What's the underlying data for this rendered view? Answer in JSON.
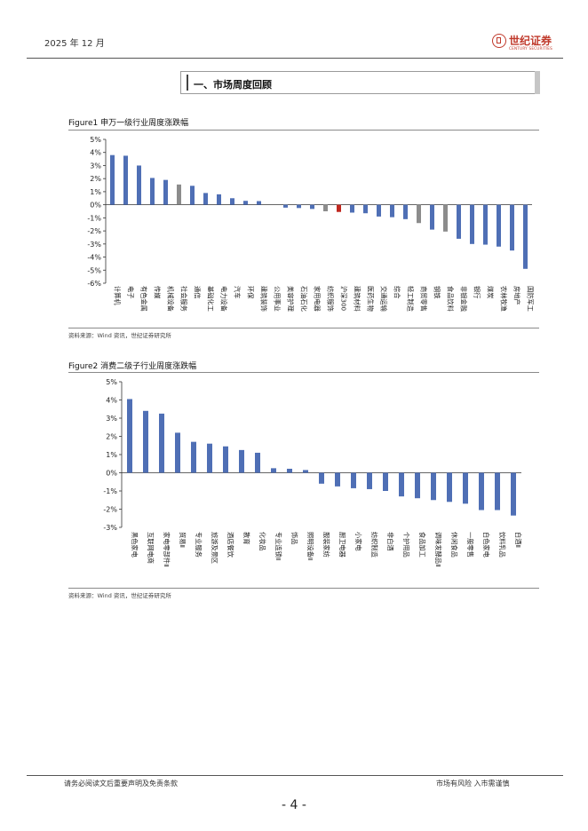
{
  "header": {
    "date": "2025 年 12 月",
    "logo_cn": "世纪证券",
    "logo_en": "CENTURY SECURITIES"
  },
  "section": {
    "title": "一、市场周度回顾"
  },
  "figure1": {
    "title": "Figure1 申万一级行业周度涨跌幅",
    "source": "资料来源：Wind 资讯，世纪证券研究所"
  },
  "figure2": {
    "title": "Figure2 消费二级子行业周度涨跌幅",
    "source": "资料来源：Wind 资讯，世纪证券研究所"
  },
  "footer": {
    "left": "请务必阅读文后重要声明及免责条款",
    "right": "市场有风险 入市需谨慎",
    "page": "- 4 -"
  },
  "colors": {
    "bar": "#4f6fb5",
    "highlight_gray": "#8c8c8c",
    "highlight_red": "#c0271f",
    "axis": "#333333"
  },
  "chart_data": [
    {
      "type": "bar",
      "title": "",
      "xlabel": "",
      "ylabel": "",
      "ylim": [
        -6,
        5
      ],
      "yticks": [
        5,
        4,
        3,
        2,
        1,
        0,
        -1,
        -2,
        -3,
        -4,
        -5,
        -6
      ],
      "tick_suffix": "%",
      "categories": [
        "计算机",
        "电子",
        "有色金属",
        "传媒",
        "机械设备",
        "社会服务",
        "通信",
        "基础化工",
        "电力设备",
        "汽车",
        "环保",
        "建筑装饰",
        "公用事业",
        "美容护理",
        "石油石化",
        "家用电器",
        "纺织服饰",
        "沪深300",
        "建筑材料",
        "医药生物",
        "交通运输",
        "综合",
        "轻工制造",
        "商贸零售",
        "钢铁",
        "食品饮料",
        "非银金融",
        "银行",
        "煤炭",
        "农林牧渔",
        "房地产",
        "国防军工"
      ],
      "values": [
        3.8,
        3.75,
        3.0,
        2.05,
        1.9,
        1.55,
        1.45,
        0.9,
        0.8,
        0.5,
        0.3,
        0.28,
        0.0,
        -0.22,
        -0.25,
        -0.32,
        -0.5,
        -0.55,
        -0.6,
        -0.65,
        -0.9,
        -0.95,
        -1.1,
        -1.4,
        -1.9,
        -2.05,
        -2.6,
        -3.0,
        -3.05,
        -3.2,
        -3.5,
        -4.9
      ],
      "highlight": {
        "社会服务": "gray",
        "纺织服饰": "gray",
        "商贸零售": "gray",
        "食品饮料": "gray",
        "沪深300": "red"
      },
      "grid": false,
      "legend": "none"
    },
    {
      "type": "bar",
      "title": "",
      "xlabel": "",
      "ylabel": "",
      "ylim": [
        -3,
        5
      ],
      "yticks": [
        5,
        4,
        3,
        2,
        1,
        0,
        -1,
        -2,
        -3
      ],
      "tick_suffix": "%",
      "categories": [
        "黑色家电",
        "互联网电商",
        "家电零部件Ⅱ",
        "贸易Ⅱ",
        "专业服务",
        "旅游及景区",
        "酒店餐饮",
        "教育",
        "化妆品",
        "专业连锁Ⅱ",
        "饰品",
        "照明设备Ⅱ",
        "服装家纺",
        "厨卫电器",
        "小家电",
        "纺织制造",
        "非白酒",
        "个护用品",
        "食品加工",
        "调味发酵品Ⅱ",
        "休闲食品",
        "一般零售",
        "白色家电",
        "饮料乳品",
        "白酒Ⅱ"
      ],
      "values": [
        4.05,
        3.4,
        3.25,
        2.2,
        1.7,
        1.6,
        1.45,
        1.25,
        1.1,
        0.25,
        0.22,
        0.15,
        -0.6,
        -0.75,
        -0.85,
        -0.9,
        -1.0,
        -1.3,
        -1.4,
        -1.5,
        -1.6,
        -1.7,
        -2.05,
        -2.05,
        -2.35
      ],
      "grid": false,
      "legend": "none"
    }
  ]
}
